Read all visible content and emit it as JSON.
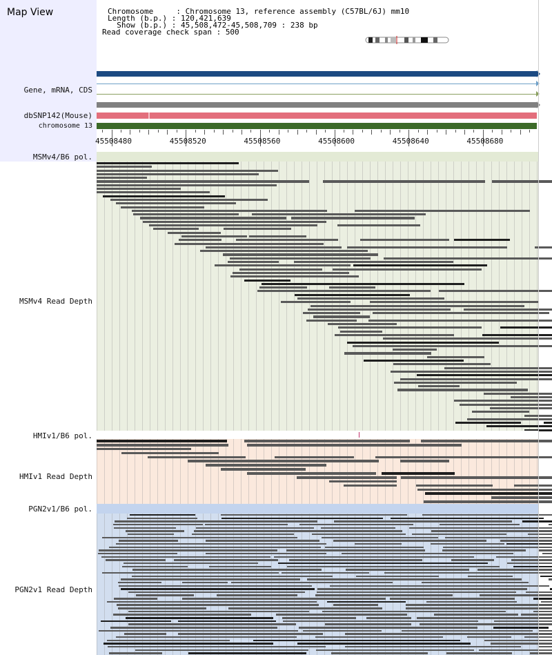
{
  "header": {
    "title": "Map View",
    "chromosome_label": "Chromosome     : ",
    "chromosome_value": "Chromosome 13, reference assembly (C57BL/6J) mm10",
    "length_label": "Length (b.p.) : ",
    "length_value": "120,421,639",
    "show_label": "  Show (b.p.) : ",
    "show_value": "45,508,472-45,508,709 : 238 bp",
    "coverage_label": "Read coverage check span : ",
    "coverage_value": "500"
  },
  "tracks": {
    "gene": "Gene, mRNA, CDS",
    "snp": "dbSNP142(Mouse)",
    "chrom": "chromosome 13"
  },
  "axis": {
    "start": 45508472,
    "end": 45508709,
    "ticks": [
      "45508480",
      "45508520",
      "45508560",
      "45508600",
      "45508640",
      "45508680"
    ]
  },
  "strains": [
    {
      "pol": "MSMv4/B6 pol.",
      "depth": "MSMv4 Read Depth",
      "bg": "#ebefe1",
      "polbg": "#e3ead5"
    },
    {
      "pol": "HMIv1/B6 pol.",
      "depth": "HMIv1 Read Depth",
      "bg": "#fbe9dd",
      "polbg": "#ffffff"
    },
    {
      "pol": "PGN2v1/B6 pol.",
      "depth": "PGN2v1 Read Depth",
      "bg": "#d2deef",
      "polbg": "#c3d4ee"
    }
  ],
  "colors": {
    "left_panel": "#eeeeff",
    "gene_bar": "#1c4a82",
    "snp_bar": "#e36e7c",
    "chrom_bar": "#3c6a28",
    "read": "#595959",
    "read_dark": "#1e1e1e"
  }
}
